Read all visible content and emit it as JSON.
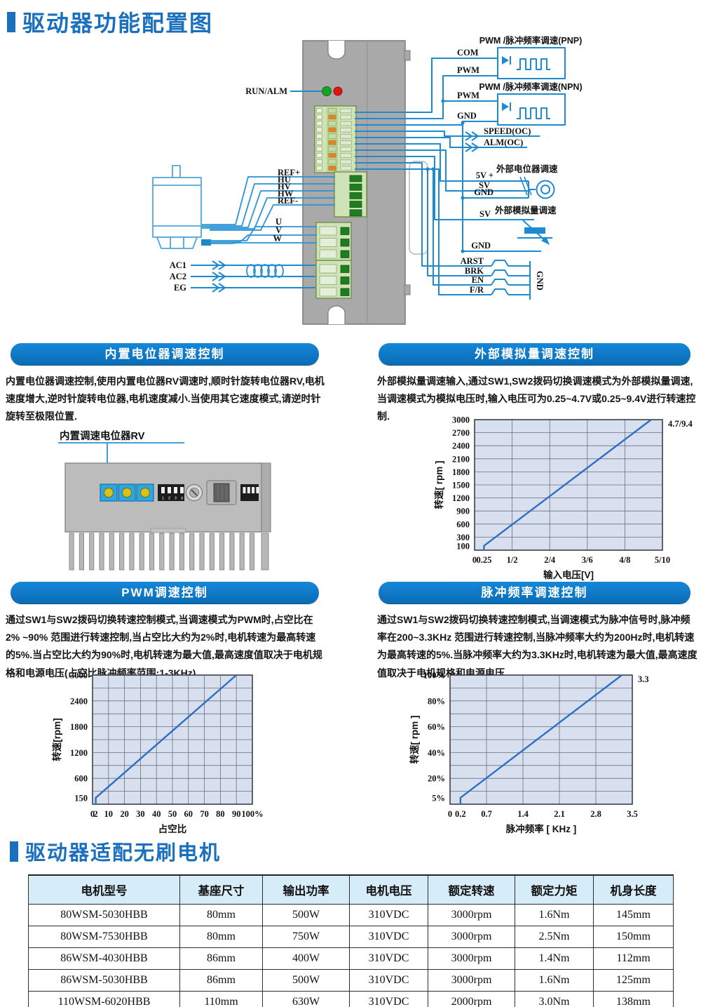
{
  "titles": {
    "main": "驱动器功能配置图",
    "table": "驱动器适配无刷电机"
  },
  "colors": {
    "accent_blue": "#1b70bd",
    "header_bar": "#0d78c6",
    "wire_blue": "#1e8ad2",
    "table_header_bg": "#d6ecf8"
  },
  "diagram": {
    "run_alm": "RUN/ALM",
    "ref_labels": [
      "REF+",
      "HU",
      "HV",
      "HW",
      "REF-"
    ],
    "uvw_labels": [
      "U",
      "V",
      "W"
    ],
    "ac_labels": [
      "AC1",
      "AC2",
      "EG"
    ],
    "pnp": {
      "title": "PWM /脉冲频率调速(PNP)",
      "top": "COM",
      "bottom": "PWM"
    },
    "npn": {
      "title": "PWM /脉冲频率调速(NPN)",
      "top": "PWM",
      "bottom": "GND"
    },
    "speed_oc": "SPEED(OC)",
    "alm_oc": "ALM(OC)",
    "ext_pot": {
      "title": "外部电位器调速",
      "pins": [
        "5V +",
        "SV",
        "GND"
      ]
    },
    "ext_analog": {
      "title": "外部模拟量调速",
      "pin": "SV"
    },
    "gnd": "GND",
    "inputs": {
      "labels": [
        "ARST",
        "BRK",
        "EN",
        "F/R"
      ],
      "bus": "GND"
    }
  },
  "sections": [
    {
      "header": "内置电位器调速控制",
      "body": "内置电位器调速控制,使用内置电位器RV调速时,顺时针旋转电位器RV,电机速度增大,逆时针旋转电位器,电机速度减小.当使用其它速度模式,请逆时针旋转至极限位置.",
      "figure_label": "内置调速电位器RV"
    },
    {
      "header": "外部模拟量调速控制",
      "body": "外部模拟量调速输入,通过SW1,SW2拨码切换调速模式为外部模拟量调速,当调速模式为模拟电压时,输入电压可为0.25~4.7V或0.25~9.4V进行转速控制."
    },
    {
      "header": "PWM调速控制",
      "body": "通过SW1与SW2拨码切换转速控制模式,当调速模式为PWM时,占空比在2% ~90% 范围进行转速控制,当占空比大约为2%时,电机转速为最高转速的5%.当占空比大约为90%时,电机转速为最大值,最高速度值取决于电机规格和电源电压(占空比脉冲频率范围:1-3KHz)."
    },
    {
      "header": "脉冲频率调速控制",
      "body": "通过SW1与SW2拨码切换转速控制模式,当调速模式为脉冲信号时,脉冲频率在200~3.3KHz 范围进行转速控制,当脉冲频率大约为200Hz时,电机转速为最高转速的5%.当脉冲频率大约为3.3KHz时,电机转速为最大值,最高速度值取决于电机规格和电源电压."
    }
  ],
  "chart_data": [
    {
      "type": "line",
      "xlabel": "输入电压[V]",
      "ylabel": "转速[ rpm ]",
      "xlim": [
        0,
        5
      ],
      "ylim": [
        0,
        3000
      ],
      "x_ticks": [
        {
          "v": 0,
          "label": "0"
        },
        {
          "v": 0.25,
          "label": "0.25"
        },
        {
          "v": 1,
          "label": "1/2"
        },
        {
          "v": 2,
          "label": "2/4"
        },
        {
          "v": 3,
          "label": "3/6"
        },
        {
          "v": 4,
          "label": "4/8"
        },
        {
          "v": 5,
          "label": "5/10"
        }
      ],
      "y_ticks": [
        {
          "v": 100,
          "label": "100"
        },
        {
          "v": 300,
          "label": "300"
        },
        {
          "v": 600,
          "label": "600"
        },
        {
          "v": 900,
          "label": "900"
        },
        {
          "v": 1200,
          "label": "1200"
        },
        {
          "v": 1500,
          "label": "1500"
        },
        {
          "v": 1800,
          "label": "1800"
        },
        {
          "v": 2100,
          "label": "2100"
        },
        {
          "v": 2400,
          "label": "2400"
        },
        {
          "v": 2700,
          "label": "2700"
        },
        {
          "v": 3000,
          "label": "3000"
        }
      ],
      "x_grid": [
        1,
        2,
        3,
        4
      ],
      "y_grid": [
        300,
        600,
        900,
        1200,
        1500,
        1800,
        2100,
        2400,
        2700
      ],
      "series": [
        {
          "name": "speed-vs-voltage",
          "x": [
            0.25,
            0.25,
            4.7
          ],
          "y": [
            0,
            100,
            3000
          ]
        }
      ],
      "annotation": "4.7/9.4",
      "legend": "none",
      "grid": "on",
      "colors": {
        "bg": "#d8e0f0",
        "grid": "#6a6f7d",
        "frame": "#3c3f49",
        "line": "#2d6fc3"
      }
    },
    {
      "type": "line",
      "xlabel": "占空比",
      "ylabel": "转速[rpm]",
      "xlim": [
        0,
        100
      ],
      "ylim": [
        0,
        3000
      ],
      "x_ticks": [
        {
          "v": 0,
          "label": "0"
        },
        {
          "v": 2,
          "label": "2"
        },
        {
          "v": 10,
          "label": "10"
        },
        {
          "v": 20,
          "label": "20"
        },
        {
          "v": 30,
          "label": "30"
        },
        {
          "v": 40,
          "label": "40"
        },
        {
          "v": 50,
          "label": "50"
        },
        {
          "v": 60,
          "label": "60"
        },
        {
          "v": 70,
          "label": "70"
        },
        {
          "v": 80,
          "label": "80"
        },
        {
          "v": 90,
          "label": "90"
        },
        {
          "v": 100,
          "label": "100%"
        }
      ],
      "y_ticks": [
        {
          "v": 150,
          "label": "150"
        },
        {
          "v": 600,
          "label": "600"
        },
        {
          "v": 1200,
          "label": "1200"
        },
        {
          "v": 1800,
          "label": "1800"
        },
        {
          "v": 2400,
          "label": "2400"
        },
        {
          "v": 3000,
          "label": "3000"
        }
      ],
      "x_grid": [
        10,
        20,
        30,
        40,
        50,
        60,
        70,
        80,
        90
      ],
      "y_grid": [
        300,
        600,
        900,
        1200,
        1500,
        1800,
        2100,
        2400,
        2700
      ],
      "series": [
        {
          "name": "speed-vs-duty",
          "x": [
            2,
            2,
            90
          ],
          "y": [
            0,
            150,
            3000
          ]
        }
      ],
      "annotation": "",
      "legend": "none",
      "grid": "on",
      "colors": {
        "bg": "#d8e0f0",
        "grid": "#6a6f7d",
        "frame": "#3c3f49",
        "line": "#2d6fc3"
      }
    },
    {
      "type": "line",
      "xlabel": "脉冲频率 [ KHz ]",
      "ylabel": "转速[ rpm ]",
      "xlim": [
        0,
        3.5
      ],
      "ylim": [
        0,
        100
      ],
      "x_ticks": [
        {
          "v": 0,
          "label": "0"
        },
        {
          "v": 0.2,
          "label": "0.2"
        },
        {
          "v": 0.7,
          "label": "0.7"
        },
        {
          "v": 1.4,
          "label": "1.4"
        },
        {
          "v": 2.1,
          "label": "2.1"
        },
        {
          "v": 2.8,
          "label": "2.8"
        },
        {
          "v": 3.5,
          "label": "3.5"
        }
      ],
      "y_ticks": [
        {
          "v": 5,
          "label": "5%"
        },
        {
          "v": 20,
          "label": "20%"
        },
        {
          "v": 40,
          "label": "40%"
        },
        {
          "v": 60,
          "label": "60%"
        },
        {
          "v": 80,
          "label": "80%"
        },
        {
          "v": 100,
          "label": "100%"
        }
      ],
      "x_grid": [
        0.7,
        1.4,
        2.1,
        2.8
      ],
      "y_grid": [
        10,
        20,
        30,
        40,
        50,
        60,
        70,
        80,
        90
      ],
      "series": [
        {
          "name": "speed-vs-pulse",
          "x": [
            0.2,
            0.2,
            3.3
          ],
          "y": [
            0,
            5,
            100
          ]
        }
      ],
      "annotation": "3.3",
      "legend": "none",
      "grid": "on",
      "colors": {
        "bg": "#d8e0f0",
        "grid": "#6a6f7d",
        "frame": "#3c3f49",
        "line": "#2d6fc3"
      }
    }
  ],
  "table": {
    "headers": [
      "电机型号",
      "基座尺寸",
      "输出功率",
      "电机电压",
      "额定转速",
      "额定力矩",
      "机身长度"
    ],
    "rows": [
      [
        "80WSM-5030HBB",
        "80mm",
        "500W",
        "310VDC",
        "3000rpm",
        "1.6Nm",
        "145mm"
      ],
      [
        "80WSM-7530HBB",
        "80mm",
        "750W",
        "310VDC",
        "3000rpm",
        "2.5Nm",
        "150mm"
      ],
      [
        "86WSM-4030HBB",
        "86mm",
        "400W",
        "310VDC",
        "3000rpm",
        "1.4Nm",
        "112mm"
      ],
      [
        "86WSM-5030HBB",
        "86mm",
        "500W",
        "310VDC",
        "3000rpm",
        "1.6Nm",
        "125mm"
      ],
      [
        "110WSM-6020HBB",
        "110mm",
        "630W",
        "310VDC",
        "2000rpm",
        "3.0Nm",
        "138mm"
      ]
    ]
  }
}
